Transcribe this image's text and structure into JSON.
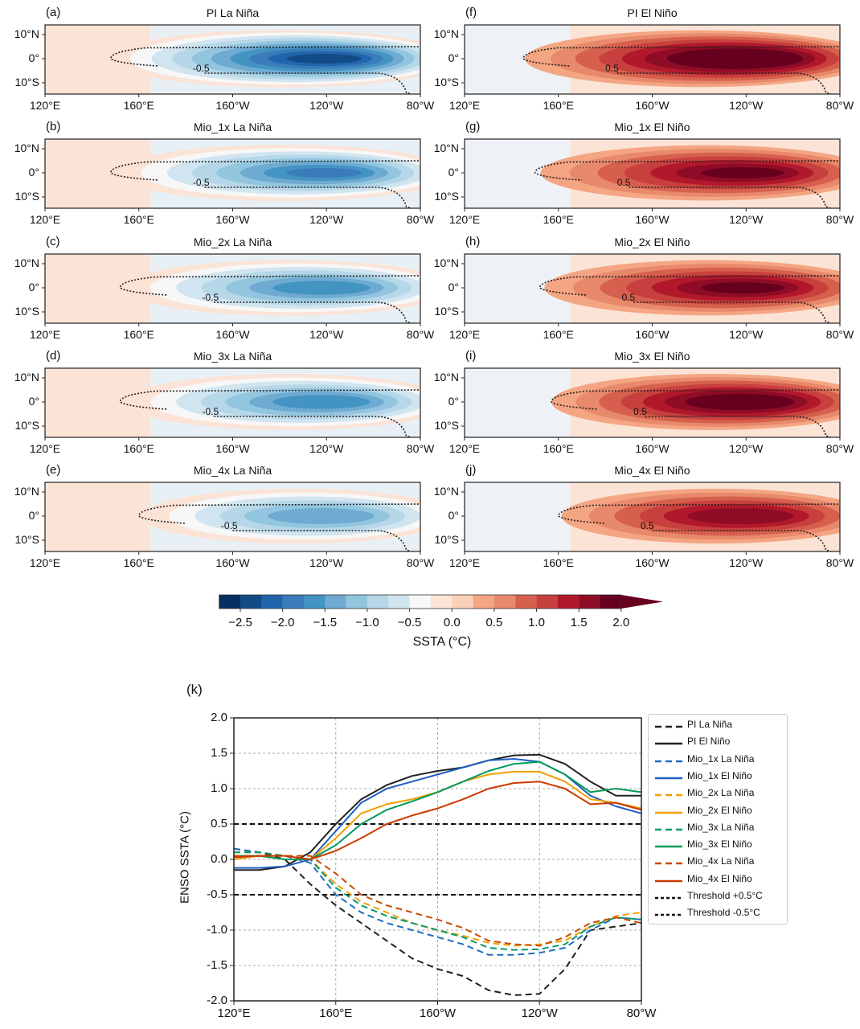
{
  "maps": {
    "lat_ticks": [
      "10°N",
      "0°",
      "10°S"
    ],
    "lon_ticks": [
      "120°E",
      "160°E",
      "160°W",
      "120°W",
      "80°W"
    ],
    "panels": [
      {
        "letter": "(a)",
        "title": "PI La Niña",
        "phase": "la",
        "peak_ssta": -2.5,
        "west_extent_lon": 148,
        "contour_label": "-0.5"
      },
      {
        "letter": "(b)",
        "title": "Mio_1x La Niña",
        "phase": "la",
        "peak_ssta": -2.0,
        "west_extent_lon": 148,
        "contour_label": "-0.5"
      },
      {
        "letter": "(c)",
        "title": "Mio_2x La Niña",
        "phase": "la",
        "peak_ssta": -1.9,
        "west_extent_lon": 152,
        "contour_label": "-0.5"
      },
      {
        "letter": "(d)",
        "title": "Mio_3x La Niña",
        "phase": "la",
        "peak_ssta": -1.9,
        "west_extent_lon": 152,
        "contour_label": "-0.5"
      },
      {
        "letter": "(e)",
        "title": "Mio_4x La Niña",
        "phase": "la",
        "peak_ssta": -1.7,
        "west_extent_lon": 160,
        "contour_label": "-0.5"
      },
      {
        "letter": "(f)",
        "title": "PI El Niño",
        "phase": "el",
        "peak_ssta": 2.2,
        "west_extent_lon": 145,
        "contour_label": "0.5"
      },
      {
        "letter": "(g)",
        "title": "Mio_1x El Niño",
        "phase": "el",
        "peak_ssta": 1.8,
        "west_extent_lon": 150,
        "contour_label": "0.5"
      },
      {
        "letter": "(h)",
        "title": "Mio_2x El Niño",
        "phase": "el",
        "peak_ssta": 1.8,
        "west_extent_lon": 152,
        "contour_label": "0.5"
      },
      {
        "letter": "(i)",
        "title": "Mio_3x El Niño",
        "phase": "el",
        "peak_ssta": 2.0,
        "west_extent_lon": 157,
        "contour_label": "0.5"
      },
      {
        "letter": "(j)",
        "title": "Mio_4x El Niño",
        "phase": "el",
        "peak_ssta": 1.7,
        "west_extent_lon": 160,
        "contour_label": "0.5"
      }
    ]
  },
  "colorbar": {
    "label": "SSTA (°C)",
    "ticks": [
      "−2.5",
      "−2.0",
      "−1.5",
      "−1.0",
      "−0.5",
      "0.0",
      "0.5",
      "1.0",
      "1.5",
      "2.0"
    ],
    "colors": [
      "#053061",
      "#134b87",
      "#2166ac",
      "#3a7bb9",
      "#4393c3",
      "#6eaad1",
      "#92c5de",
      "#b6d7e8",
      "#d1e5f0",
      "#f7f7f7",
      "#fbe3d6",
      "#fbd0b9",
      "#f4a582",
      "#e8896c",
      "#d6604d",
      "#c8403e",
      "#b2182b",
      "#8e0c25",
      "#67001f"
    ]
  },
  "chart_data": {
    "type": "line",
    "panel_letter": "(k)",
    "title": "",
    "xlabel": "",
    "ylabel": "ENSO SSTA (°C)",
    "x": [
      120,
      130,
      140,
      150,
      160,
      170,
      180,
      190,
      200,
      210,
      220,
      230,
      240,
      250,
      260,
      270,
      280
    ],
    "x_tick_values": [
      120,
      160,
      200,
      240,
      280
    ],
    "x_tick_labels": [
      "120°E",
      "160°E",
      "160°W",
      "120°W",
      "80°W"
    ],
    "y_tick_values": [
      2.0,
      1.5,
      1.0,
      0.5,
      0.0,
      -0.5,
      -1.0,
      -1.5,
      -2.0
    ],
    "y_tick_labels": [
      "2.0",
      "1.5",
      "1.0",
      "0.5",
      "0.0",
      "-0.5",
      "-1.0",
      "-1.5",
      "-2.0"
    ],
    "xlim": [
      120,
      280
    ],
    "ylim": [
      -2.0,
      2.0
    ],
    "grid": true,
    "legend_position": "right",
    "series": [
      {
        "name": "PI La Niña",
        "color": "#222222",
        "dash": true,
        "values": [
          0.15,
          0.1,
          0.0,
          -0.35,
          -0.65,
          -0.9,
          -1.15,
          -1.4,
          -1.55,
          -1.65,
          -1.85,
          -1.92,
          -1.9,
          -1.55,
          -1.0,
          -0.95,
          -0.9
        ]
      },
      {
        "name": "PI El Niño",
        "color": "#222222",
        "dash": false,
        "values": [
          -0.15,
          -0.15,
          -0.1,
          0.1,
          0.5,
          0.85,
          1.05,
          1.18,
          1.25,
          1.3,
          1.4,
          1.47,
          1.48,
          1.35,
          1.1,
          0.9,
          0.9
        ]
      },
      {
        "name": "Mio_1x La Niña",
        "color": "#1f6fc0",
        "dash": true,
        "values": [
          0.15,
          0.1,
          0.05,
          -0.05,
          -0.5,
          -0.75,
          -0.9,
          -1.0,
          -1.1,
          -1.2,
          -1.35,
          -1.35,
          -1.32,
          -1.25,
          -1.0,
          -0.82,
          -0.85
        ]
      },
      {
        "name": "Mio_1x El Niño",
        "color": "#1f5fc0",
        "dash": false,
        "values": [
          -0.12,
          -0.12,
          -0.1,
          0.0,
          0.4,
          0.8,
          1.0,
          1.1,
          1.2,
          1.3,
          1.4,
          1.42,
          1.38,
          1.2,
          0.9,
          0.75,
          0.65
        ]
      },
      {
        "name": "Mio_2x La Niña",
        "color": "#f0a000",
        "dash": true,
        "values": [
          0.1,
          0.1,
          0.05,
          0.0,
          -0.35,
          -0.6,
          -0.75,
          -0.9,
          -1.0,
          -1.08,
          -1.18,
          -1.22,
          -1.2,
          -1.15,
          -0.95,
          -0.8,
          -0.75
        ]
      },
      {
        "name": "Mio_2x El Niño",
        "color": "#f0a000",
        "dash": false,
        "values": [
          0.0,
          0.05,
          0.0,
          0.0,
          0.3,
          0.65,
          0.78,
          0.85,
          0.95,
          1.1,
          1.2,
          1.24,
          1.24,
          1.1,
          0.85,
          0.8,
          0.72
        ]
      },
      {
        "name": "Mio_3x La Niña",
        "color": "#009a6a",
        "dash": true,
        "values": [
          0.1,
          0.1,
          0.05,
          0.0,
          -0.4,
          -0.65,
          -0.8,
          -0.9,
          -1.0,
          -1.1,
          -1.25,
          -1.28,
          -1.27,
          -1.2,
          -0.95,
          -0.82,
          -0.85
        ]
      },
      {
        "name": "Mio_3x El Niño",
        "color": "#009a5a",
        "dash": false,
        "values": [
          0.05,
          0.05,
          0.0,
          0.0,
          0.2,
          0.5,
          0.7,
          0.82,
          0.95,
          1.1,
          1.25,
          1.35,
          1.38,
          1.2,
          0.95,
          1.0,
          0.95
        ]
      },
      {
        "name": "Mio_4x La Niña",
        "color": "#cc4a00",
        "dash": true,
        "values": [
          0.05,
          0.05,
          0.05,
          0.05,
          -0.2,
          -0.5,
          -0.65,
          -0.75,
          -0.85,
          -0.97,
          -1.15,
          -1.2,
          -1.22,
          -1.1,
          -0.9,
          -0.82,
          -0.9
        ]
      },
      {
        "name": "Mio_4x El Niño",
        "color": "#cc3a00",
        "dash": false,
        "values": [
          0.03,
          0.05,
          0.05,
          0.0,
          0.12,
          0.3,
          0.5,
          0.62,
          0.72,
          0.85,
          1.0,
          1.08,
          1.1,
          1.0,
          0.78,
          0.8,
          0.7
        ]
      }
    ],
    "thresholds": [
      {
        "name": "Threshold +0.5°C",
        "value": 0.5
      },
      {
        "name": "Threshold -0.5°C",
        "value": -0.5
      }
    ]
  }
}
